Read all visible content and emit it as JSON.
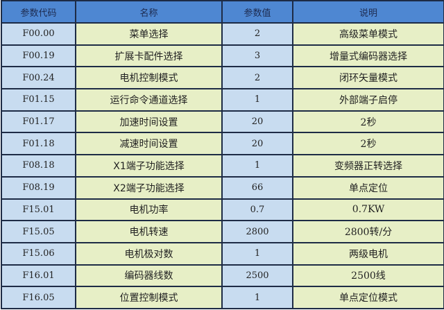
{
  "headers": [
    "参数代码",
    "名称",
    "参数值",
    "说明"
  ],
  "rows": [
    [
      "F00.00",
      "菜单选择",
      "2",
      "高级菜单模式"
    ],
    [
      "F00.19",
      "扩展卡配件选择",
      "3",
      "增量式编码器选择"
    ],
    [
      "F00.24",
      "电机控制模式",
      "2",
      "闭环矢量模式"
    ],
    [
      "F01.15",
      "运行命令通道选择",
      "1",
      "外部端子启停"
    ],
    [
      "F01.17",
      "加速时间设置",
      "20",
      "2秒"
    ],
    [
      "F01.18",
      "减速时间设置",
      "20",
      "2秒"
    ],
    [
      "F08.18",
      "X1端子功能选择",
      "1",
      "变频器正转选择"
    ],
    [
      "F08.19",
      "X2端子功能选择",
      "66",
      "单点定位"
    ],
    [
      "F15.01",
      "电机功率",
      "0.7",
      "0.7KW"
    ],
    [
      "F15.05",
      "电机转速",
      "2800",
      "2800转/分"
    ],
    [
      "F15.06",
      "电机极对数",
      "1",
      "两级电机"
    ],
    [
      "F16.01",
      "编码器线数",
      "2500",
      "2500线"
    ],
    [
      "F16.05",
      "位置控制模式",
      "1",
      "单点定位模式"
    ]
  ]
}
